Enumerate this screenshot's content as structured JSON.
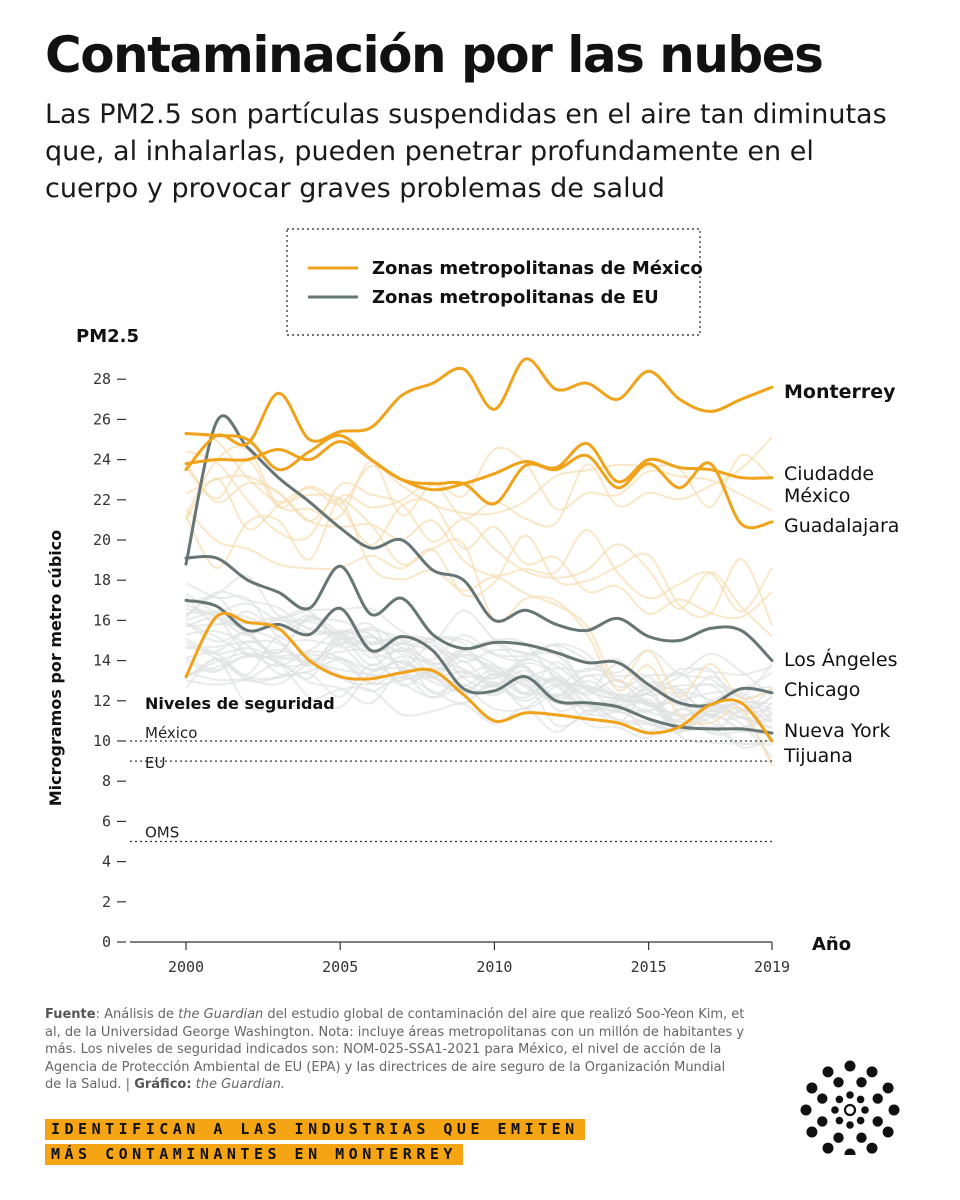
{
  "header": {
    "title": "Contaminación por las nubes",
    "subtitle": "Las PM2.5 son partículas suspendidas en el aire tan diminutas que, al inhalarlas, pueden penetrar profundamente en el cuerpo y provocar graves problemas de salud"
  },
  "colors": {
    "mexico": "#f0a31a",
    "eu": "#667575",
    "background_mexico": "#f6ddb0",
    "background_eu": "#dfe3e3",
    "banner": "#f5a414"
  },
  "chart_data": {
    "type": "line",
    "unit_label": "PM2.5",
    "ylabel": "Microgramos por metro cúbico",
    "xlabel": "Año",
    "ylim": [
      0,
      29
    ],
    "xlim": [
      2000,
      2019
    ],
    "yticks": [
      "0",
      "2",
      "4",
      "6",
      "8",
      "10",
      "12",
      "14",
      "16",
      "18",
      "20",
      "22",
      "24",
      "26",
      "28"
    ],
    "xticks": [
      "2000",
      "2005",
      "2010",
      "2015",
      "2019"
    ],
    "grid": false,
    "legend": {
      "placement": "top-center",
      "entries": [
        {
          "label": "Zonas metropolitanas de México",
          "color": "#f0a31a"
        },
        {
          "label": "Zonas metropolitanas de EU",
          "color": "#667575"
        }
      ]
    },
    "x": [
      2000,
      2001,
      2002,
      2003,
      2004,
      2005,
      2006,
      2007,
      2008,
      2009,
      2010,
      2011,
      2012,
      2013,
      2014,
      2015,
      2016,
      2017,
      2018,
      2019
    ],
    "series": [
      {
        "name": "Monterrey",
        "group": "mexico",
        "values": [
          23.5,
          25.2,
          24.8,
          27.3,
          25.0,
          25.4,
          25.6,
          27.2,
          27.8,
          28.5,
          26.5,
          29.0,
          27.5,
          27.8,
          27.0,
          28.4,
          27.0,
          26.4,
          27.0,
          27.6
        ]
      },
      {
        "name": "Ciudadde México",
        "group": "mexico",
        "values": [
          25.3,
          25.2,
          25.0,
          23.5,
          24.4,
          25.2,
          24.0,
          23.0,
          22.5,
          22.8,
          23.3,
          23.9,
          23.6,
          24.8,
          22.9,
          24.0,
          23.6,
          23.5,
          23.1,
          23.1
        ]
      },
      {
        "name": "Guadalajara",
        "group": "mexico",
        "values": [
          23.8,
          24.0,
          24.0,
          24.5,
          24.0,
          24.9,
          24.0,
          23.0,
          22.8,
          22.8,
          21.8,
          23.7,
          23.5,
          24.2,
          22.6,
          23.8,
          22.6,
          23.8,
          20.8,
          20.9
        ]
      },
      {
        "name": "Tijuana",
        "group": "mexico",
        "values": [
          13.2,
          16.2,
          15.9,
          15.6,
          14.0,
          13.2,
          13.1,
          13.4,
          13.5,
          12.3,
          11.0,
          11.4,
          11.3,
          11.1,
          10.9,
          10.4,
          10.7,
          11.8,
          11.9,
          10.0
        ]
      },
      {
        "name": "Los Ángeles",
        "group": "eu",
        "values": [
          18.8,
          25.9,
          24.6,
          23.1,
          21.9,
          20.6,
          19.6,
          20.0,
          18.5,
          18.0,
          16.0,
          16.5,
          15.8,
          15.5,
          16.1,
          15.2,
          15.0,
          15.6,
          15.5,
          14.0
        ]
      },
      {
        "name": "Chicago",
        "group": "eu",
        "values": [
          19.1,
          19.1,
          18.0,
          17.4,
          16.6,
          18.7,
          16.3,
          17.1,
          15.3,
          14.6,
          14.9,
          14.8,
          14.4,
          13.9,
          13.9,
          12.8,
          11.9,
          11.8,
          12.6,
          12.4
        ]
      },
      {
        "name": "Nueva York",
        "group": "eu",
        "values": [
          17.0,
          16.7,
          15.5,
          15.8,
          15.3,
          16.6,
          14.5,
          15.2,
          14.5,
          12.6,
          12.5,
          13.2,
          12.0,
          11.9,
          11.7,
          11.1,
          10.7,
          10.6,
          10.6,
          10.4
        ]
      }
    ],
    "reference_lines": {
      "title": "Niveles de seguridad",
      "lines": [
        {
          "label": "México",
          "value": 10
        },
        {
          "label": "EU",
          "value": 9
        },
        {
          "label": "OMS",
          "value": 5
        }
      ]
    }
  },
  "footer": {
    "source_label": "Fuente",
    "source_pre": ": Análisis de ",
    "source_pub": "the Guardian",
    "source_body": " del estudio global de contaminación del aire que realizó Soo-Yeon Kim, et al, de la Universidad George Washington. Nota: incluye áreas metropolitanas con un millón de habitantes y más. Los niveles de seguridad indicados son: NOM-025-SSA1-2021 para México, el nivel de acción de la Agencia de Protección Ambiental de EU (EPA) y las directrices de aire seguro de la Organización Mundial de la Salud. | ",
    "credit_label": "Gráfico:",
    "credit_value": " the Guardian.",
    "banner_line1": "IDENTIFICAN A LAS INDUSTRIAS QUE EMITEN",
    "banner_line2": "MÁS CONTAMINANTES EN MONTERREY"
  }
}
